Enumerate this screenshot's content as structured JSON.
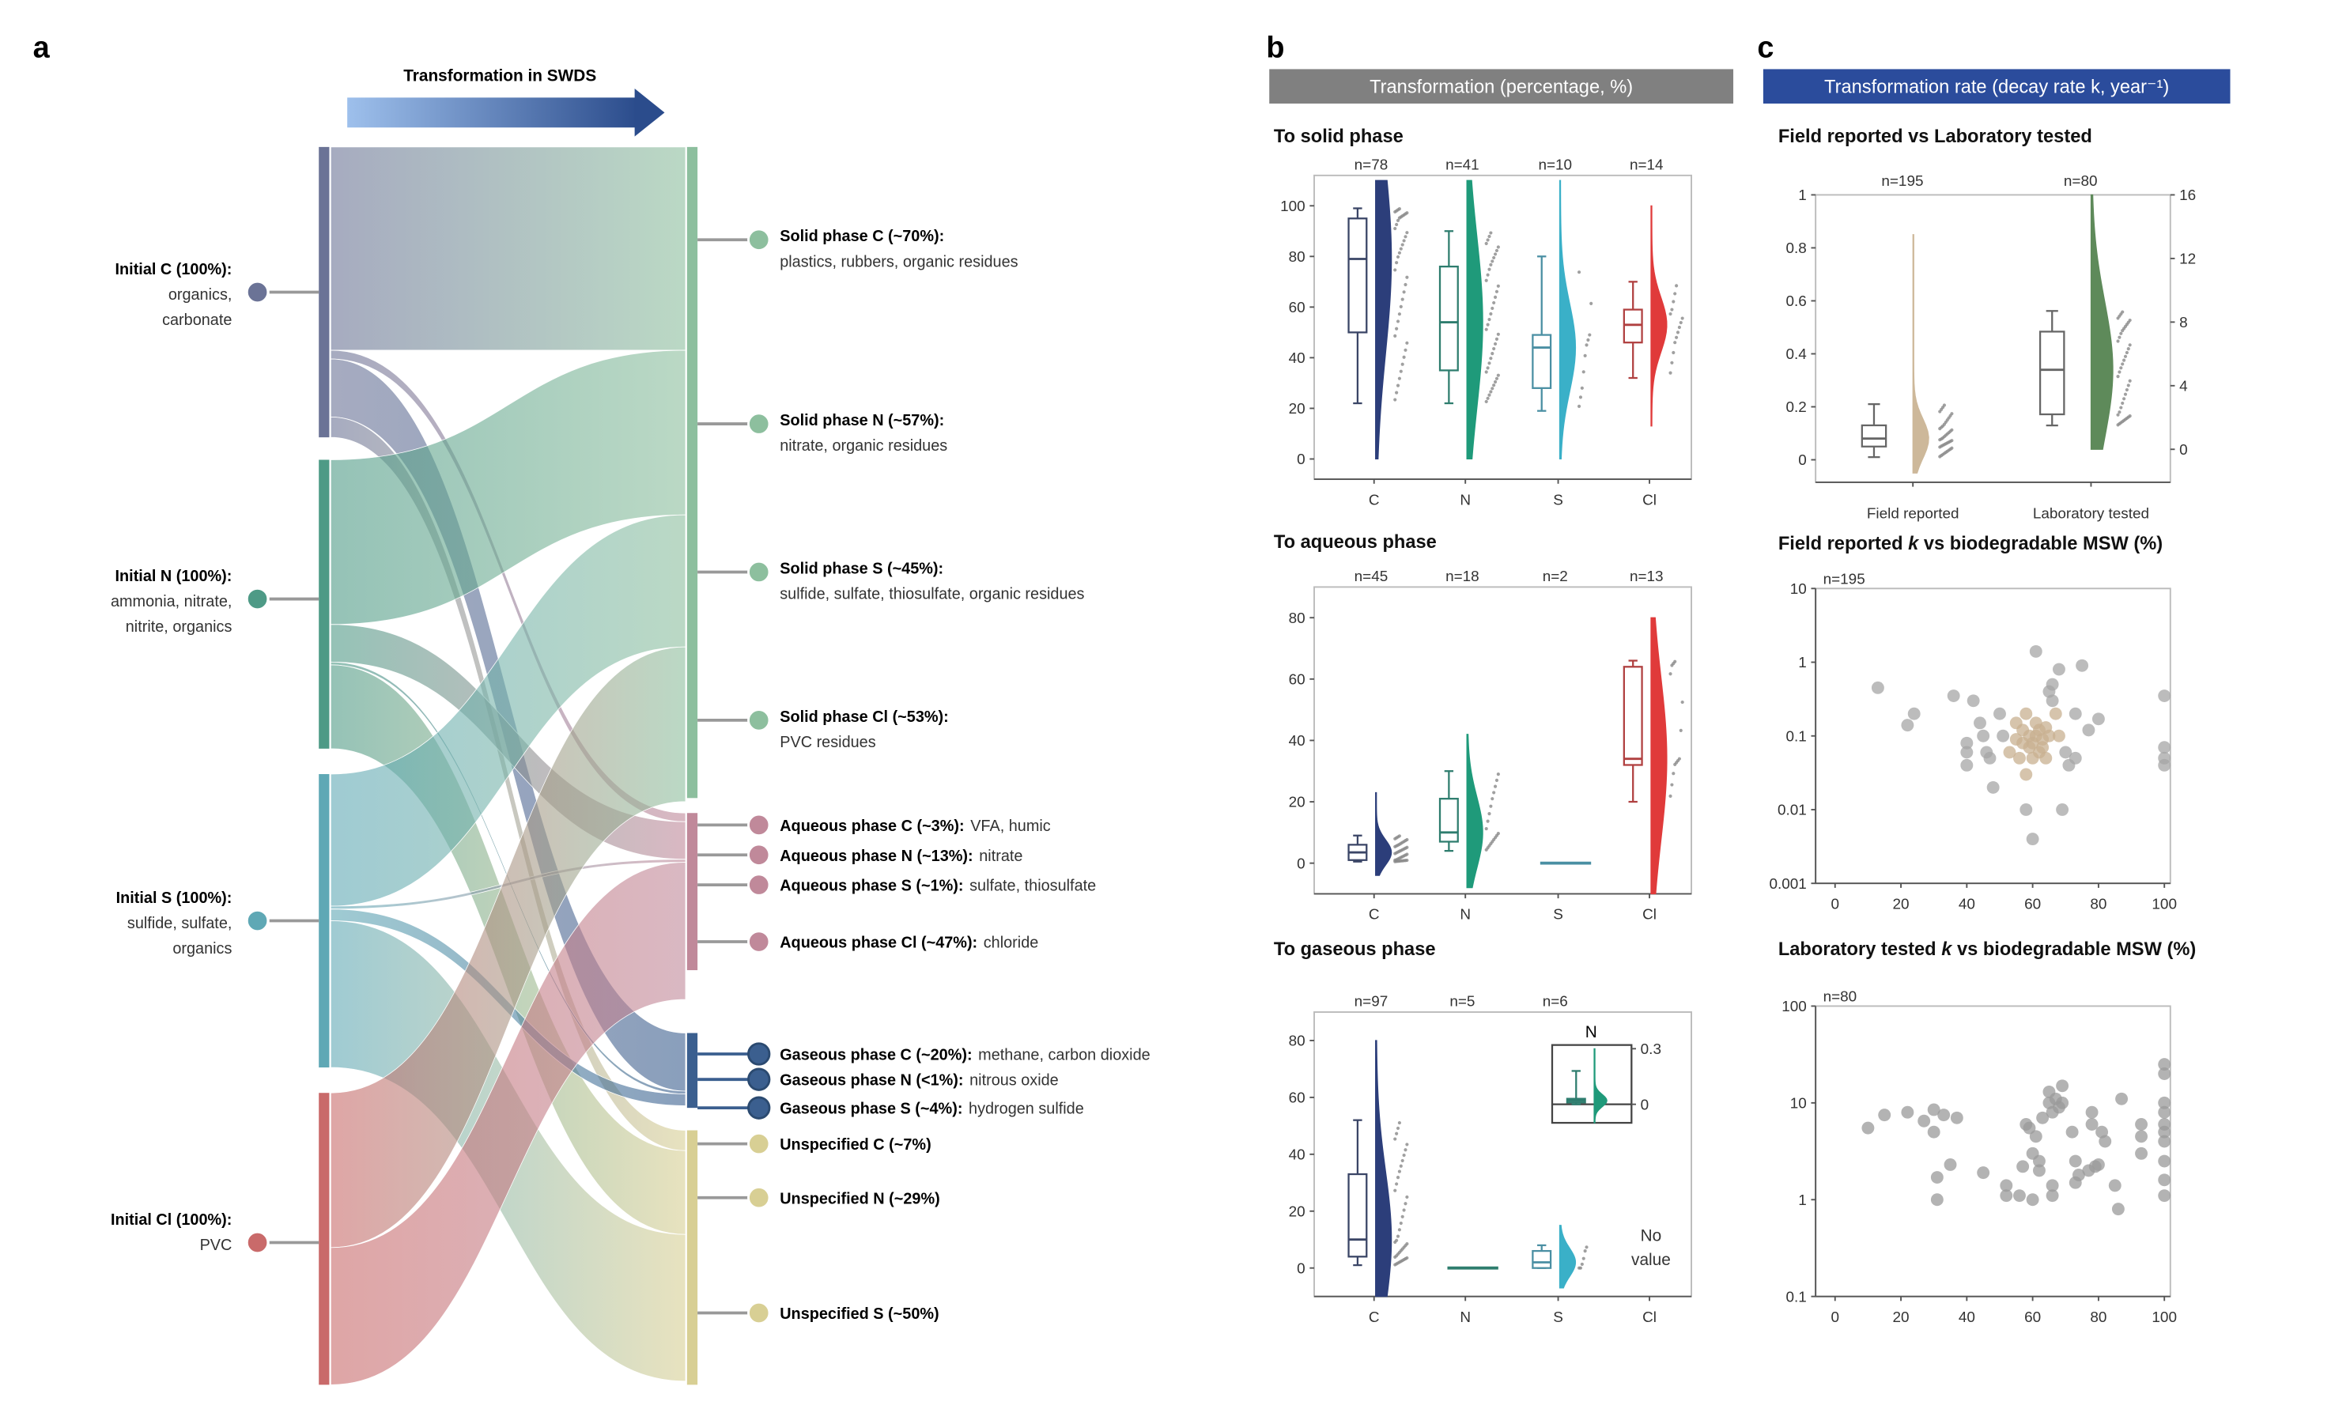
{
  "panel_labels": {
    "a": "a",
    "b": "b",
    "c": "c"
  },
  "sankey": {
    "arrow_title": "Transformation in SWDS",
    "sources": [
      {
        "id": "C",
        "bold": "Initial  C (100%):",
        "lines": [
          "organics,",
          "carbonate"
        ],
        "color": "#6b7396"
      },
      {
        "id": "N",
        "bold": "Initial  N (100%):",
        "lines": [
          "ammonia, nitrate,",
          "nitrite, organics"
        ],
        "color": "#4e9a86"
      },
      {
        "id": "S",
        "bold": "Initial  S (100%):",
        "lines": [
          "sulfide, sulfate,",
          "organics"
        ],
        "color": "#5fa8b5"
      },
      {
        "id": "Cl",
        "bold": "Initial  Cl (100%):",
        "lines": [
          "PVC"
        ],
        "color": "#c96a6a"
      }
    ],
    "targets": [
      {
        "id": "solid",
        "color": "#8dbf9e",
        "nodes": [
          {
            "bold": "Solid phase C (~70%):",
            "rest": "plastics, rubbers, organic residues",
            "wrap": true
          },
          {
            "bold": "Solid phase N (~57%):",
            "rest": "nitrate, organic residues",
            "wrap": true
          },
          {
            "bold": "Solid phase S (~45%):",
            "rest": "sulfide, sulfate, thiosulfate, organic residues",
            "wrap": true
          },
          {
            "bold": "Solid phase Cl (~53%):",
            "rest": "PVC residues",
            "wrap": true
          }
        ]
      },
      {
        "id": "aqueous",
        "color": "#c0899a",
        "nodes": [
          {
            "bold": "Aqueous phase C (~3%):",
            "rest": "VFA, humic"
          },
          {
            "bold": "Aqueous phase N (~13%):",
            "rest": "nitrate"
          },
          {
            "bold": "Aqueous phase S (~1%):",
            "rest": "sulfate, thiosulfate"
          },
          {
            "bold": "Aqueous phase Cl (~47%):",
            "rest": "chloride"
          }
        ]
      },
      {
        "id": "gaseous",
        "color": "#3b5f8f",
        "nodes": [
          {
            "bold": "Gaseous phase C (~20%):",
            "rest": "methane, carbon dioxide"
          },
          {
            "bold": "Gaseous phase N (<1%):",
            "rest": "nitrous oxide"
          },
          {
            "bold": "Gaseous phase S (~4%):",
            "rest": "hydrogen sulfide"
          }
        ]
      },
      {
        "id": "unspecified",
        "color": "#d8cf94",
        "nodes": [
          {
            "bold": "Unspecified  C (~7%)",
            "rest": ""
          },
          {
            "bold": "Unspecified  N (~29%)",
            "rest": ""
          },
          {
            "bold": "Unspecified  S (~50%)",
            "rest": ""
          }
        ]
      }
    ],
    "flows": [
      {
        "from": "C",
        "to": "solid",
        "pct": 70
      },
      {
        "from": "C",
        "to": "aqueous",
        "pct": 3
      },
      {
        "from": "C",
        "to": "gaseous",
        "pct": 20
      },
      {
        "from": "C",
        "to": "unspecified",
        "pct": 7
      },
      {
        "from": "N",
        "to": "solid",
        "pct": 57
      },
      {
        "from": "N",
        "to": "aqueous",
        "pct": 13
      },
      {
        "from": "N",
        "to": "gaseous",
        "pct": 1
      },
      {
        "from": "N",
        "to": "unspecified",
        "pct": 29
      },
      {
        "from": "S",
        "to": "solid",
        "pct": 45
      },
      {
        "from": "S",
        "to": "aqueous",
        "pct": 1
      },
      {
        "from": "S",
        "to": "gaseous",
        "pct": 4
      },
      {
        "from": "S",
        "to": "unspecified",
        "pct": 50
      },
      {
        "from": "Cl",
        "to": "solid",
        "pct": 53
      },
      {
        "from": "Cl",
        "to": "aqueous",
        "pct": 47
      }
    ]
  },
  "panel_b": {
    "header": "Transformation (percentage, %)",
    "header_color": "#808080"
  },
  "panel_c": {
    "header": "Transformation rate (decay rate k, year⁻¹)",
    "header_color": "#2b4c9c"
  },
  "chart_data": [
    {
      "type": "box",
      "title": "To solid phase",
      "categories": [
        "C",
        "N",
        "S",
        "Cl"
      ],
      "n_labels": [
        "n=78",
        "n=41",
        "n=10",
        "n=14"
      ],
      "ylim": [
        -8,
        112
      ],
      "yticks": [
        0,
        20,
        40,
        60,
        80,
        100
      ],
      "colors": [
        "#2c3e7a",
        "#1f9a7a",
        "#3ab0c8",
        "#e03a3a"
      ],
      "box_colors": [
        "#3a4566",
        "#2e7d6e",
        "#4a8fa3",
        "#b04040"
      ],
      "stats": [
        {
          "whisker_low": 22,
          "q1": 50,
          "median": 79,
          "q3": 95,
          "whisker_high": 99,
          "min": 0,
          "max": 110
        },
        {
          "whisker_low": 22,
          "q1": 35,
          "median": 54,
          "q3": 76,
          "whisker_high": 90,
          "min": 0,
          "max": 110
        },
        {
          "whisker_low": 19,
          "q1": 28,
          "median": 44,
          "q3": 49,
          "whisker_high": 80,
          "min": 0,
          "max": 110
        },
        {
          "whisker_low": 32,
          "q1": 46,
          "median": 53,
          "q3": 59,
          "whisker_high": 70,
          "min": 13,
          "max": 100
        }
      ]
    },
    {
      "type": "box",
      "title": "To aqueous phase",
      "categories": [
        "C",
        "N",
        "S",
        "Cl"
      ],
      "n_labels": [
        "n=45",
        "n=18",
        "n=2",
        "n=13"
      ],
      "ylim": [
        -10,
        90
      ],
      "yticks": [
        0,
        20,
        40,
        60,
        80
      ],
      "colors": [
        "#2c3e7a",
        "#1f9a7a",
        "#3ab0c8",
        "#e03a3a"
      ],
      "box_colors": [
        "#3a4566",
        "#2e7d6e",
        "#4a8fa3",
        "#b04040"
      ],
      "stats": [
        {
          "whisker_low": 0.5,
          "q1": 1,
          "median": 3.5,
          "q3": 6,
          "whisker_high": 9,
          "min": -4,
          "max": 23
        },
        {
          "whisker_low": 4,
          "q1": 7,
          "median": 10,
          "q3": 21,
          "whisker_high": 30,
          "min": -8,
          "max": 42
        },
        {
          "whisker_low": 0,
          "q1": 0,
          "median": 0,
          "q3": 0,
          "whisker_high": 0,
          "min": 0,
          "max": 0
        },
        {
          "whisker_low": 20,
          "q1": 32,
          "median": 34,
          "q3": 64,
          "whisker_high": 66,
          "min": -10,
          "max": 80
        }
      ]
    },
    {
      "type": "box",
      "title": "To gaseous phase",
      "categories": [
        "C",
        "N",
        "S",
        "Cl"
      ],
      "n_labels": [
        "n=97",
        "n=5",
        "n=6",
        ""
      ],
      "ylim": [
        -10,
        90
      ],
      "yticks": [
        0,
        20,
        40,
        60,
        80
      ],
      "colors": [
        "#2c3e7a",
        "#1f9a7a",
        "#3ab0c8",
        "#e03a3a"
      ],
      "box_colors": [
        "#3a4566",
        "#2e7d6e",
        "#4a8fa3",
        "#b04040"
      ],
      "stats": [
        {
          "whisker_low": 1,
          "q1": 4,
          "median": 10,
          "q3": 33,
          "whisker_high": 52,
          "min": -10,
          "max": 80
        },
        {
          "whisker_low": 0,
          "q1": 0,
          "median": 0,
          "q3": 0,
          "whisker_high": 0,
          "min": 0,
          "max": 0
        },
        {
          "whisker_low": 0,
          "q1": 0,
          "median": 2,
          "q3": 6,
          "whisker_high": 8,
          "min": -7,
          "max": 15
        },
        null
      ],
      "no_value_label": [
        "No",
        "value"
      ],
      "inset": {
        "title": "N",
        "ylim": [
          -0.1,
          0.32
        ],
        "yticks": [
          0,
          0.3
        ],
        "stats": {
          "whisker_low": 0,
          "q1": 0.01,
          "median": 0.02,
          "q3": 0.03,
          "whisker_high": 0.18,
          "min": -0.1,
          "max": 0.3
        }
      }
    },
    {
      "type": "box",
      "title": "Field reported vs Laboratory tested",
      "categories": [
        "Field reported",
        "Laboratory tested"
      ],
      "n_labels": [
        "n=195",
        "n=80"
      ],
      "ylim_left": [
        0,
        1.0
      ],
      "yticks_left": [
        0,
        0.2,
        0.4,
        0.6,
        0.8,
        1.0
      ],
      "ylim_right": [
        0,
        16
      ],
      "yticks_right": [
        0,
        4,
        8,
        12,
        16
      ],
      "colors": [
        "#cdb89a",
        "#5e8a5a"
      ],
      "stats": [
        {
          "axis": "left",
          "whisker_low": 0.01,
          "q1": 0.05,
          "median": 0.08,
          "q3": 0.13,
          "whisker_high": 0.21,
          "min": -0.05,
          "max": 0.85
        },
        {
          "axis": "right",
          "whisker_low": 1.5,
          "q1": 2.2,
          "median": 5.0,
          "q3": 7.4,
          "whisker_high": 8.7,
          "min": 0,
          "max": 16
        }
      ]
    },
    {
      "type": "scatter",
      "title_pre": "Field reported ",
      "title_k": "k",
      "title_post": " vs biodegradable MSW (%)",
      "n_label": "n=195",
      "xlim": [
        -3,
        103
      ],
      "xticks": [
        0,
        20,
        40,
        60,
        80,
        100
      ],
      "ylim": [
        0.001,
        10
      ],
      "yscale": "log",
      "yticks": [
        "0.001",
        "0.01",
        "0.1",
        "1",
        "10"
      ],
      "color": "#a6a6a6",
      "points": [
        [
          13,
          0.45
        ],
        [
          22,
          0.14
        ],
        [
          24,
          0.2
        ],
        [
          36,
          0.35
        ],
        [
          40,
          0.08
        ],
        [
          40,
          0.06
        ],
        [
          40,
          0.04
        ],
        [
          42,
          0.3
        ],
        [
          44,
          0.15
        ],
        [
          45,
          0.1
        ],
        [
          46,
          0.06
        ],
        [
          47,
          0.05
        ],
        [
          48,
          0.02
        ],
        [
          50,
          0.2
        ],
        [
          51,
          0.1
        ],
        [
          53,
          0.06
        ],
        [
          55,
          0.15
        ],
        [
          55,
          0.09
        ],
        [
          56,
          0.05
        ],
        [
          57,
          0.08
        ],
        [
          57,
          0.12
        ],
        [
          58,
          0.03
        ],
        [
          58,
          0.01
        ],
        [
          58,
          0.2
        ],
        [
          59,
          0.07
        ],
        [
          59,
          0.1
        ],
        [
          60,
          0.004
        ],
        [
          60,
          0.08
        ],
        [
          60,
          0.05
        ],
        [
          61,
          0.1
        ],
        [
          61,
          1.4
        ],
        [
          61,
          0.15
        ],
        [
          62,
          0.12
        ],
        [
          62,
          0.06
        ],
        [
          63,
          0.07
        ],
        [
          63,
          0.09
        ],
        [
          64,
          0.05
        ],
        [
          64,
          0.13
        ],
        [
          65,
          0.1
        ],
        [
          65,
          0.4
        ],
        [
          66,
          0.5
        ],
        [
          66,
          0.3
        ],
        [
          67,
          0.2
        ],
        [
          68,
          0.8
        ],
        [
          68,
          0.1
        ],
        [
          69,
          0.01
        ],
        [
          70,
          0.06
        ],
        [
          71,
          0.04
        ],
        [
          73,
          0.2
        ],
        [
          73,
          0.05
        ],
        [
          75,
          0.9
        ],
        [
          77,
          0.12
        ],
        [
          80,
          0.17
        ],
        [
          100,
          0.35
        ],
        [
          100,
          0.07
        ],
        [
          100,
          0.05
        ],
        [
          100,
          0.04
        ]
      ]
    },
    {
      "type": "scatter",
      "title_pre": "Laboratory tested ",
      "title_k": "k",
      "title_post": " vs biodegradable MSW (%)",
      "n_label": "n=80",
      "xlim": [
        -3,
        103
      ],
      "xticks": [
        0,
        20,
        40,
        60,
        80,
        100
      ],
      "ylim": [
        0.1,
        100
      ],
      "yscale": "log",
      "yticks": [
        "0.1",
        "1",
        "10",
        "100"
      ],
      "color": "#9a9a9a",
      "points": [
        [
          10,
          5.5
        ],
        [
          15,
          7.5
        ],
        [
          22,
          8
        ],
        [
          27,
          6.5
        ],
        [
          30,
          8.5
        ],
        [
          30,
          5
        ],
        [
          31,
          1.7
        ],
        [
          31,
          1
        ],
        [
          33,
          7.5
        ],
        [
          35,
          2.3
        ],
        [
          37,
          7
        ],
        [
          45,
          1.9
        ],
        [
          52,
          1.4
        ],
        [
          52,
          1.1
        ],
        [
          56,
          1.1
        ],
        [
          57,
          2.2
        ],
        [
          58,
          6
        ],
        [
          59,
          5.5
        ],
        [
          60,
          3
        ],
        [
          60,
          1
        ],
        [
          61,
          4.5
        ],
        [
          62,
          2.5
        ],
        [
          62,
          2
        ],
        [
          63,
          7
        ],
        [
          65,
          10
        ],
        [
          65,
          13
        ],
        [
          66,
          8
        ],
        [
          66,
          1.1
        ],
        [
          66,
          1.4
        ],
        [
          67,
          11
        ],
        [
          68,
          9
        ],
        [
          69,
          15
        ],
        [
          69,
          10
        ],
        [
          72,
          5
        ],
        [
          73,
          2.5
        ],
        [
          73,
          1.5
        ],
        [
          74,
          1.8
        ],
        [
          77,
          2
        ],
        [
          78,
          6
        ],
        [
          78,
          8
        ],
        [
          79,
          2.2
        ],
        [
          80,
          2.3
        ],
        [
          81,
          5
        ],
        [
          82,
          4
        ],
        [
          85,
          1.4
        ],
        [
          86,
          0.8
        ],
        [
          87,
          11
        ],
        [
          93,
          6
        ],
        [
          93,
          3
        ],
        [
          93,
          4.5
        ],
        [
          100,
          25
        ],
        [
          100,
          20
        ],
        [
          100,
          10
        ],
        [
          100,
          8
        ],
        [
          100,
          6
        ],
        [
          100,
          5
        ],
        [
          100,
          4
        ],
        [
          100,
          2.5
        ],
        [
          100,
          1.6
        ],
        [
          100,
          1.1
        ]
      ]
    }
  ]
}
